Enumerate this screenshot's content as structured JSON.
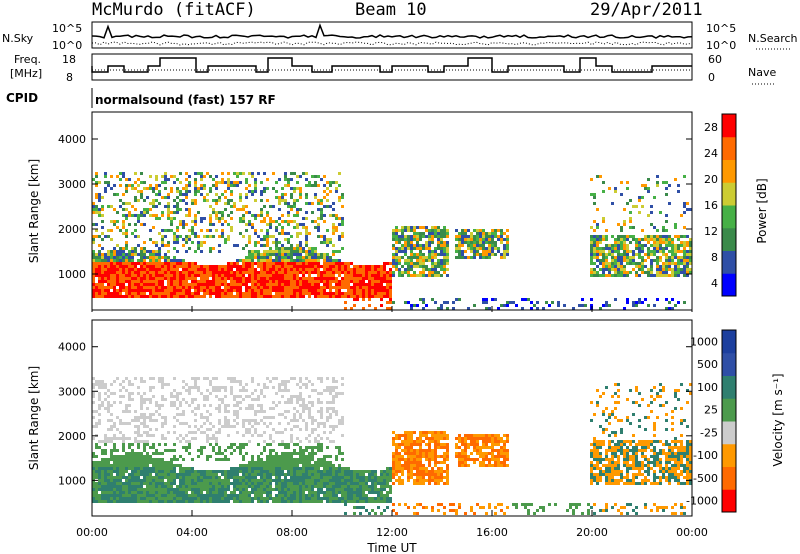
{
  "header": {
    "station": "McMurdo (fitACF)",
    "beam": "Beam 10",
    "date": "29/Apr/2011"
  },
  "panels": {
    "nsky": {
      "label": "N.Sky",
      "left_ticks": [
        "10^5",
        "10^0"
      ],
      "right_ticks": [
        "10^5",
        "10^0"
      ],
      "right_label": "N.Search"
    },
    "freq": {
      "label_line1": "Freq.",
      "label_line2": "[MHz]",
      "left_ticks": [
        "18",
        "8"
      ],
      "right_ticks": [
        "60",
        "0"
      ],
      "right_label": "Nave"
    },
    "cpid": {
      "label": "CPID",
      "value": "normalsound (fast) 157 RF"
    }
  },
  "colors": {
    "power": [
      "#0000ff",
      "#2f4fa6",
      "#3a8a4a",
      "#46b046",
      "#cccc33",
      "#ff9900",
      "#ff6a00",
      "#ff0000"
    ],
    "velocity": [
      "#ff0000",
      "#ff6a00",
      "#ff9900",
      "#cccccc",
      "#4c9a4c",
      "#2f7f6f",
      "#2f4fa6",
      "#1c3f9e"
    ]
  },
  "chart_data": [
    {
      "type": "heatmap",
      "name": "power",
      "ylabel": "Slant Range [km]",
      "yticks": [
        "4000",
        "3000",
        "2000",
        "1000"
      ],
      "ylim": [
        200,
        4600
      ],
      "colorbar_label": "Power [dB]",
      "colorbar_ticks": [
        "28",
        "24",
        "20",
        "16",
        "12",
        "8",
        "4"
      ]
    },
    {
      "type": "heatmap",
      "name": "velocity",
      "ylabel": "Slant Range [km]",
      "yticks": [
        "4000",
        "3000",
        "2000",
        "1000"
      ],
      "ylim": [
        200,
        4600
      ],
      "colorbar_label": "Velocity [m s⁻¹]",
      "colorbar_ticks": [
        "1000",
        "500",
        "100",
        "25",
        "-25",
        "-100",
        "-500",
        "-1000"
      ]
    }
  ],
  "xaxis": {
    "label": "Time UT",
    "ticks": [
      "00:00",
      "04:00",
      "08:00",
      "12:00",
      "16:00",
      "20:00",
      "00:00"
    ]
  }
}
